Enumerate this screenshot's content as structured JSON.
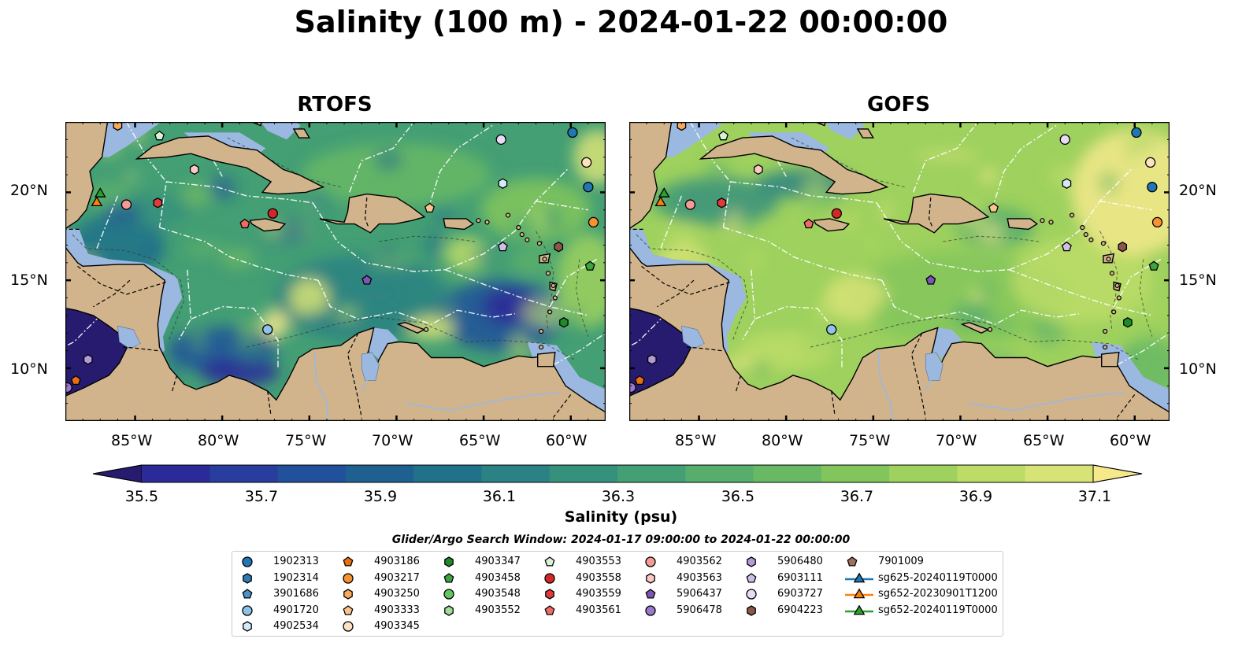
{
  "title": "Salinity (100 m) - 2024-01-22 00:00:00",
  "panels": [
    {
      "title": "RTOFS",
      "palette": "rtofs"
    },
    {
      "title": "GOFS",
      "palette": "gofs"
    }
  ],
  "lon_ticks": [
    "85°W",
    "80°W",
    "75°W",
    "70°W",
    "65°W",
    "60°W"
  ],
  "lat_ticks": [
    "20°N",
    "15°N",
    "10°N"
  ],
  "colorbar": {
    "label": "Salinity (psu)",
    "ticks": [
      "35.5",
      "35.7",
      "35.9",
      "36.1",
      "36.3",
      "36.5",
      "36.7",
      "36.9",
      "37.1"
    ],
    "colors": [
      "#271b70",
      "#2b2a99",
      "#283d9e",
      "#21519a",
      "#1e6190",
      "#22718a",
      "#2b8183",
      "#35917c",
      "#449f74",
      "#56ad6c",
      "#69b964",
      "#82c55c",
      "#9ed15e",
      "#bcdc67",
      "#d8e377",
      "#f5e98c"
    ]
  },
  "search_window": "Glider/Argo Search Window: 2024-01-17 09:00:00 to 2024-01-22 00:00:00",
  "legend": [
    {
      "label": "1902313",
      "marker": "circle",
      "color": "#1f77b4"
    },
    {
      "label": "1902314",
      "marker": "hexagon",
      "color": "#2c7bb6"
    },
    {
      "label": "3901686",
      "marker": "pentagon",
      "color": "#4a90c9"
    },
    {
      "label": "4901720",
      "marker": "circle",
      "color": "#8ec2e8"
    },
    {
      "label": "4902534",
      "marker": "hexagon",
      "color": "#d3ebf8"
    },
    {
      "label": "4903186",
      "marker": "pentagon",
      "color": "#e8700f"
    },
    {
      "label": "4903217",
      "marker": "circle",
      "color": "#f7922f"
    },
    {
      "label": "4903250",
      "marker": "hexagon",
      "color": "#f9a95a"
    },
    {
      "label": "4903333",
      "marker": "pentagon",
      "color": "#fbc48e"
    },
    {
      "label": "4903345",
      "marker": "circle",
      "color": "#fde2c2"
    },
    {
      "label": "4903347",
      "marker": "hexagon",
      "color": "#1f8a2a"
    },
    {
      "label": "4903458",
      "marker": "pentagon",
      "color": "#3da440"
    },
    {
      "label": "4903548",
      "marker": "circle",
      "color": "#63c463"
    },
    {
      "label": "4903552",
      "marker": "hexagon",
      "color": "#a2dc9a"
    },
    {
      "label": "4903553",
      "marker": "pentagon",
      "color": "#d8f3d2"
    },
    {
      "label": "4903558",
      "marker": "circle",
      "color": "#d62728"
    },
    {
      "label": "4903559",
      "marker": "hexagon",
      "color": "#e03a3a"
    },
    {
      "label": "4903561",
      "marker": "pentagon",
      "color": "#ee6b66"
    },
    {
      "label": "4903562",
      "marker": "circle",
      "color": "#f59a94"
    },
    {
      "label": "4903563",
      "marker": "hexagon",
      "color": "#fac9c5"
    },
    {
      "label": "5906437",
      "marker": "pentagon",
      "color": "#7d55b5"
    },
    {
      "label": "5906478",
      "marker": "circle",
      "color": "#9b78c9"
    },
    {
      "label": "5906480",
      "marker": "hexagon",
      "color": "#b49bd8"
    },
    {
      "label": "6903111",
      "marker": "pentagon",
      "color": "#d0bde8"
    },
    {
      "label": "6903727",
      "marker": "circle",
      "color": "#e8dcf5"
    },
    {
      "label": "6904223",
      "marker": "hexagon",
      "color": "#8c564b"
    },
    {
      "label": "7901009",
      "marker": "pentagon",
      "color": "#a0705e"
    },
    {
      "label": "sg625-20240119T0000",
      "marker": "triangle-line",
      "color": "#1f77b4"
    },
    {
      "label": "sg652-20230901T1200",
      "marker": "triangle-line",
      "color": "#ff7f0e"
    },
    {
      "label": "sg652-20240119T0000",
      "marker": "triangle-line",
      "color": "#2ca02c"
    }
  ],
  "markers": [
    {
      "id": "1902313",
      "lon": -59.9,
      "lat": 23.4
    },
    {
      "id": "1902313",
      "lon": -59.0,
      "lat": 20.3
    },
    {
      "id": "6903727",
      "lon": -64.0,
      "lat": 23.0
    },
    {
      "id": "4903345",
      "lon": -59.1,
      "lat": 21.7
    },
    {
      "id": "4902534",
      "lon": -63.9,
      "lat": 20.5
    },
    {
      "id": "4903217",
      "lon": -58.7,
      "lat": 18.3
    },
    {
      "id": "4903333",
      "lon": -68.1,
      "lat": 19.1
    },
    {
      "id": "4903558",
      "lon": -77.1,
      "lat": 18.8
    },
    {
      "id": "4903561",
      "lon": -78.7,
      "lat": 18.2
    },
    {
      "id": "4903562",
      "lon": -85.5,
      "lat": 19.3
    },
    {
      "id": "4903559",
      "lon": -83.7,
      "lat": 19.4
    },
    {
      "id": "4903563",
      "lon": -81.6,
      "lat": 21.3
    },
    {
      "id": "4903553",
      "lon": -83.6,
      "lat": 23.2
    },
    {
      "id": "4903250",
      "lon": -86.0,
      "lat": 23.8
    },
    {
      "id": "6903111",
      "lon": -63.9,
      "lat": 16.9
    },
    {
      "id": "6904223",
      "lon": -60.7,
      "lat": 16.9
    },
    {
      "id": "4903458",
      "lon": -58.9,
      "lat": 15.8
    },
    {
      "id": "4903347",
      "lon": -60.4,
      "lat": 12.6
    },
    {
      "id": "5906437",
      "lon": -71.7,
      "lat": 15.0
    },
    {
      "id": "4901720",
      "lon": -77.4,
      "lat": 12.2
    },
    {
      "id": "5906478",
      "lon": -88.9,
      "lat": 8.9
    },
    {
      "id": "4903186",
      "lon": -88.4,
      "lat": 9.3
    },
    {
      "id": "5906480",
      "lon": -87.7,
      "lat": 10.5
    },
    {
      "id": "sg652-20230901T1200",
      "lon": -87.2,
      "lat": 19.4
    },
    {
      "id": "sg652-20240119T0000",
      "lon": -87.0,
      "lat": 19.9
    }
  ],
  "extent": {
    "lon": [
      -89.0,
      -58.0
    ],
    "lat": [
      7.0,
      24.0
    ]
  }
}
